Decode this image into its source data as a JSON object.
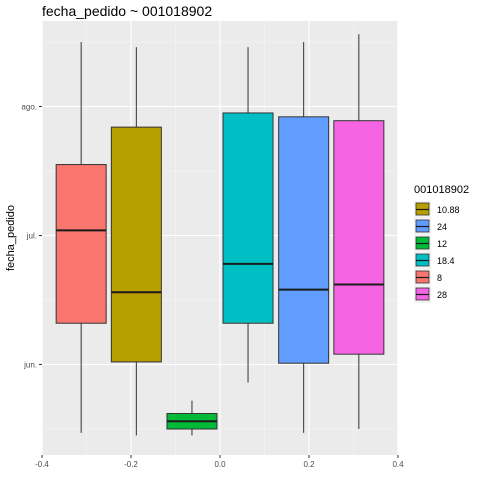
{
  "chart_data": {
    "type": "boxplot",
    "title": "fecha_pedido ~ 001018902",
    "xlabel": "",
    "ylabel": "fecha_pedido",
    "xlim": [
      -0.4,
      0.4
    ],
    "x_ticks": [
      {
        "value": -0.4,
        "label": "-0.4"
      },
      {
        "value": -0.2,
        "label": "-0.2"
      },
      {
        "value": 0.0,
        "label": "0.0"
      },
      {
        "value": 0.2,
        "label": "0.2"
      },
      {
        "value": 0.4,
        "label": "0.4"
      }
    ],
    "y_ticks": [
      {
        "label": "ago.",
        "value": 2.5
      },
      {
        "label": "jul.",
        "value": 1.5
      },
      {
        "label": "jun.",
        "value": 0.5
      }
    ],
    "grid": true,
    "legend_title": "001018902",
    "legend_position": "right",
    "series": [
      {
        "name": "8",
        "color": "#F8766D",
        "x": -0.312,
        "whisker_low": -0.03,
        "q1": 0.82,
        "median": 1.54,
        "q3": 2.05,
        "whisker_high": 3.0
      },
      {
        "name": "10.88",
        "color": "#B79F00",
        "x": -0.188,
        "whisker_low": -0.05,
        "q1": 0.52,
        "median": 1.06,
        "q3": 2.34,
        "whisker_high": 2.96
      },
      {
        "name": "12",
        "color": "#00BA38",
        "x": -0.063,
        "whisker_low": -0.05,
        "q1": 0.0,
        "median": 0.06,
        "q3": 0.12,
        "whisker_high": 0.22
      },
      {
        "name": "18.4",
        "color": "#00BFC4",
        "x": 0.063,
        "whisker_low": 0.36,
        "q1": 0.82,
        "median": 1.28,
        "q3": 2.45,
        "whisker_high": 2.96
      },
      {
        "name": "24",
        "color": "#619CFF",
        "x": 0.188,
        "whisker_low": -0.03,
        "q1": 0.51,
        "median": 1.08,
        "q3": 2.42,
        "whisker_high": 3.0
      },
      {
        "name": "28",
        "color": "#F564E3",
        "x": 0.312,
        "whisker_low": 0.0,
        "q1": 0.58,
        "median": 1.12,
        "q3": 2.39,
        "whisker_high": 3.06
      }
    ],
    "legend_order": [
      "10.88",
      "24",
      "12",
      "18.4",
      "8",
      "28"
    ]
  }
}
